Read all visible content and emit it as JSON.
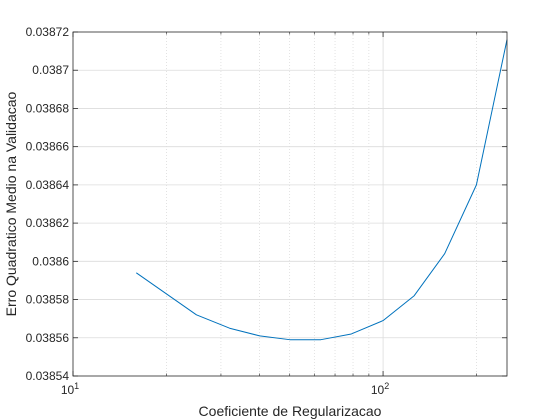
{
  "chart_data": {
    "type": "line",
    "title": "",
    "xlabel": "Coeficiente de Regularizacao",
    "ylabel": "Erro Quadratico Medio na Validacao",
    "x_scale": "log",
    "xlim": [
      10,
      251
    ],
    "ylim": [
      0.03854,
      0.03872
    ],
    "x_ticks": [
      10,
      100
    ],
    "x_tick_labels": [
      {
        "base": "10",
        "exp": "1"
      },
      {
        "base": "10",
        "exp": "2"
      }
    ],
    "y_ticks": [
      0.03854,
      0.03856,
      0.03858,
      0.0386,
      0.03862,
      0.03864,
      0.03866,
      0.03868,
      0.0387,
      0.03872
    ],
    "y_tick_labels": [
      "0.03854",
      "0.03856",
      "0.03858",
      "0.0386",
      "0.03862",
      "0.03864",
      "0.03866",
      "0.03868",
      "0.0387",
      "0.03872"
    ],
    "grid": true,
    "minor_grid_x": true,
    "line_color": "#0072BD",
    "series": [
      {
        "x": [
          16,
          20,
          25,
          32,
          40,
          50,
          63,
          79,
          100,
          126,
          158,
          200,
          251
        ],
        "y": [
          0.038594,
          0.038583,
          0.038572,
          0.038565,
          0.038561,
          0.038559,
          0.038559,
          0.038562,
          0.038569,
          0.038582,
          0.038604,
          0.03864,
          0.038716
        ]
      }
    ]
  }
}
